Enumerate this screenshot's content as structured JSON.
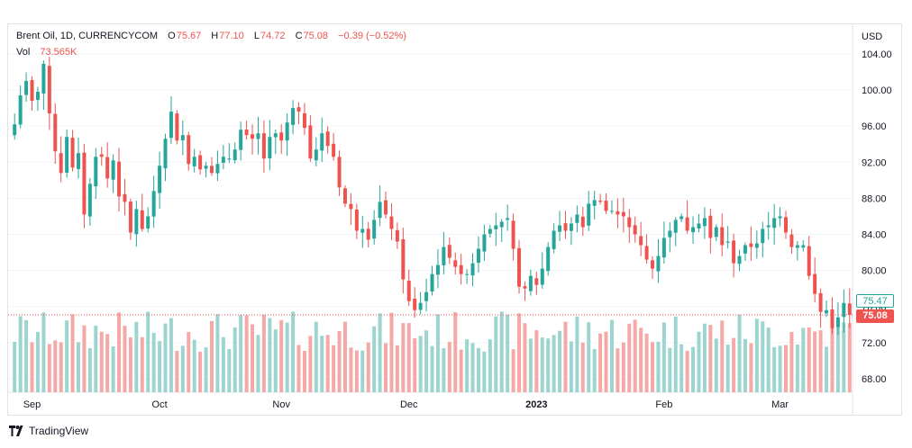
{
  "header": {
    "symbol": "Brent Oil, 1D, CURRENCYCOM",
    "o_label": "O",
    "o_value": "75.67",
    "h_label": "H",
    "h_value": "77.10",
    "l_label": "L",
    "l_value": "74.72",
    "c_label": "C",
    "c_value": "75.08",
    "change": "−0.39 (−0.52%)",
    "vol_label": "Vol",
    "vol_value": "73.565K"
  },
  "axis": {
    "currency": "USD",
    "price_ticks": [
      "104.00",
      "100.00",
      "96.00",
      "92.00",
      "88.00",
      "84.00",
      "80.00",
      "76.00",
      "72.00",
      "68.00"
    ],
    "time_ticks": [
      "Sep",
      "Oct",
      "Nov",
      "Dec",
      "2023",
      "Feb",
      "Mar"
    ]
  },
  "price_tags": {
    "top": "75.47",
    "last": "75.08"
  },
  "brand": {
    "name": "TradingView"
  },
  "colors": {
    "up": "#26a69a",
    "down": "#ef5350",
    "up_vol": "#9cd5cf",
    "down_vol": "#f5a9a7",
    "grid": "#f0f3fa",
    "axis_text": "#131722"
  },
  "chart_data": {
    "type": "candlestick",
    "ylim": [
      66,
      106
    ],
    "anchors": [
      [
        "2022-08-29",
        96.2
      ],
      [
        "2022-08-30",
        99.4
      ],
      [
        "2022-08-31",
        101.0
      ],
      [
        "2022-09-01",
        98.8
      ],
      [
        "2022-09-02",
        99.8
      ],
      [
        "2022-09-05",
        102.9
      ],
      [
        "2022-09-06",
        97.4
      ],
      [
        "2022-09-07",
        93.2
      ],
      [
        "2022-09-08",
        90.8
      ],
      [
        "2022-09-09",
        94.8
      ],
      [
        "2022-09-12",
        91.4
      ],
      [
        "2022-09-13",
        93.0
      ],
      [
        "2022-09-14",
        86.2
      ],
      [
        "2022-09-15",
        89.6
      ],
      [
        "2022-09-16",
        92.6
      ],
      [
        "2022-09-19",
        92.6
      ],
      [
        "2022-09-20",
        90.2
      ],
      [
        "2022-09-21",
        92.2
      ],
      [
        "2022-09-22",
        88.2
      ],
      [
        "2022-09-23",
        87.6
      ],
      [
        "2022-09-26",
        84.2
      ],
      [
        "2022-09-27",
        86.8
      ],
      [
        "2022-09-28",
        84.6
      ],
      [
        "2022-09-29",
        86.0
      ],
      [
        "2022-09-30",
        88.8
      ],
      [
        "2022-10-03",
        91.6
      ],
      [
        "2022-10-04",
        94.6
      ],
      [
        "2022-10-05",
        97.6
      ],
      [
        "2022-10-06",
        94.4
      ],
      [
        "2022-10-07",
        95.0
      ],
      [
        "2022-10-10",
        91.8
      ],
      [
        "2022-10-11",
        92.6
      ],
      [
        "2022-10-12",
        91.2
      ],
      [
        "2022-10-13",
        91.6
      ],
      [
        "2022-10-14",
        90.8
      ],
      [
        "2022-10-17",
        91.8
      ],
      [
        "2022-10-18",
        92.6
      ],
      [
        "2022-10-19",
        92.4
      ],
      [
        "2022-10-20",
        93.4
      ],
      [
        "2022-10-21",
        95.6
      ],
      [
        "2022-10-24",
        95.0
      ],
      [
        "2022-10-25",
        94.6
      ],
      [
        "2022-10-26",
        95.2
      ],
      [
        "2022-10-27",
        92.4
      ],
      [
        "2022-10-28",
        94.8
      ],
      [
        "2022-10-31",
        95.2
      ],
      [
        "2022-11-01",
        94.4
      ],
      [
        "2022-11-02",
        96.4
      ],
      [
        "2022-11-03",
        98.0
      ],
      [
        "2022-11-04",
        97.6
      ],
      [
        "2022-11-07",
        95.8
      ],
      [
        "2022-11-08",
        92.4
      ],
      [
        "2022-11-09",
        93.4
      ],
      [
        "2022-11-10",
        95.2
      ],
      [
        "2022-11-11",
        93.8
      ],
      [
        "2022-11-14",
        92.6
      ],
      [
        "2022-11-15",
        89.2
      ],
      [
        "2022-11-16",
        87.4
      ],
      [
        "2022-11-17",
        86.8
      ],
      [
        "2022-11-18",
        84.4
      ],
      [
        "2022-11-21",
        84.6
      ],
      [
        "2022-11-22",
        83.4
      ],
      [
        "2022-11-23",
        85.6
      ],
      [
        "2022-11-24",
        87.6
      ],
      [
        "2022-11-25",
        86.2
      ],
      [
        "2022-11-28",
        84.6
      ],
      [
        "2022-11-29",
        83.2
      ],
      [
        "2022-11-30",
        79.0
      ],
      [
        "2022-12-01",
        76.6
      ],
      [
        "2022-12-02",
        75.6
      ],
      [
        "2022-12-05",
        76.4
      ],
      [
        "2022-12-06",
        77.6
      ],
      [
        "2022-12-07",
        79.6
      ],
      [
        "2022-12-08",
        80.6
      ],
      [
        "2022-12-09",
        82.6
      ],
      [
        "2022-12-12",
        81.4
      ],
      [
        "2022-12-13",
        80.4
      ],
      [
        "2022-12-14",
        79.6
      ],
      [
        "2022-12-15",
        79.6
      ],
      [
        "2022-12-16",
        80.8
      ],
      [
        "2022-12-19",
        82.4
      ],
      [
        "2022-12-20",
        84.0
      ],
      [
        "2022-12-21",
        84.6
      ],
      [
        "2022-12-22",
        85.0
      ],
      [
        "2022-12-23",
        85.4
      ],
      [
        "2022-12-26",
        85.8
      ],
      [
        "2022-12-27",
        82.4
      ],
      [
        "2022-12-28",
        78.2
      ],
      [
        "2022-12-29",
        78.0
      ],
      [
        "2022-12-30",
        79.4
      ],
      [
        "2023-01-02",
        78.4
      ],
      [
        "2023-01-03",
        80.2
      ],
      [
        "2023-01-04",
        82.6
      ],
      [
        "2023-01-05",
        84.4
      ],
      [
        "2023-01-06",
        85.0
      ],
      [
        "2023-01-09",
        84.4
      ],
      [
        "2023-01-10",
        85.2
      ],
      [
        "2023-01-11",
        86.2
      ],
      [
        "2023-01-12",
        84.8
      ],
      [
        "2023-01-13",
        87.4
      ],
      [
        "2023-01-16",
        87.8
      ],
      [
        "2023-01-17",
        87.6
      ],
      [
        "2023-01-18",
        86.6
      ],
      [
        "2023-01-19",
        86.6
      ],
      [
        "2023-01-20",
        86.2
      ],
      [
        "2023-01-23",
        86.0
      ],
      [
        "2023-01-24",
        84.8
      ],
      [
        "2023-01-25",
        84.0
      ],
      [
        "2023-01-26",
        82.8
      ],
      [
        "2023-01-27",
        81.2
      ],
      [
        "2023-01-30",
        80.2
      ],
      [
        "2023-01-31",
        81.6
      ],
      [
        "2023-02-01",
        83.6
      ],
      [
        "2023-02-02",
        84.4
      ],
      [
        "2023-02-03",
        85.6
      ],
      [
        "2023-02-06",
        86.0
      ],
      [
        "2023-02-07",
        84.4
      ],
      [
        "2023-02-08",
        84.8
      ],
      [
        "2023-02-09",
        85.2
      ],
      [
        "2023-02-10",
        85.8
      ],
      [
        "2023-02-13",
        83.6
      ],
      [
        "2023-02-14",
        84.8
      ],
      [
        "2023-02-15",
        82.8
      ],
      [
        "2023-02-16",
        83.2
      ],
      [
        "2023-02-17",
        80.8
      ],
      [
        "2023-02-20",
        81.6
      ],
      [
        "2023-02-21",
        82.8
      ],
      [
        "2023-02-22",
        82.6
      ],
      [
        "2023-02-23",
        83.0
      ],
      [
        "2023-02-24",
        84.6
      ],
      [
        "2023-02-27",
        85.0
      ],
      [
        "2023-02-28",
        85.8
      ],
      [
        "2023-03-01",
        86.0
      ],
      [
        "2023-03-02",
        84.2
      ],
      [
        "2023-03-03",
        82.6
      ],
      [
        "2023-03-06",
        82.8
      ],
      [
        "2023-03-07",
        82.8
      ],
      [
        "2023-03-08",
        79.4
      ],
      [
        "2023-03-09",
        77.4
      ],
      [
        "2023-03-10",
        75.4
      ],
      [
        "2023-03-13",
        75.6
      ],
      [
        "2023-03-14",
        73.6
      ],
      [
        "2023-03-15",
        74.8
      ],
      [
        "2023-03-16",
        76.4
      ],
      [
        "2023-03-17",
        75.08
      ]
    ]
  }
}
